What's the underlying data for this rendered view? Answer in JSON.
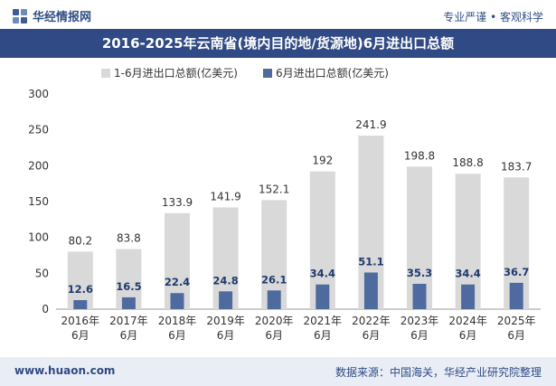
{
  "header": {
    "brand": "华经情报网",
    "tagline": "专业严谨 • 客观科学"
  },
  "colors": {
    "total": "#d9d9d9",
    "june": "#4f6a9f",
    "title_bg": "#2f4a84"
  },
  "chart_data": {
    "type": "bar",
    "title": "2016-2025年云南省(境内目的地/货源地)6月进出口总额",
    "categories": [
      "2016年\n6月",
      "2017年\n6月",
      "2018年\n6月",
      "2019年\n6月",
      "2020年\n6月",
      "2021年\n6月",
      "2022年\n6月",
      "2023年\n6月",
      "2024年\n6月",
      "2025年\n6月"
    ],
    "series": [
      {
        "name": "1-6月进出口总额(亿美元)",
        "values": [
          80.2,
          83.8,
          133.9,
          141.9,
          152.1,
          192,
          241.9,
          198.8,
          188.8,
          183.7
        ],
        "labels": [
          "80.2",
          "83.8",
          "133.9",
          "141.9",
          "152.1",
          "192",
          "241.9",
          "198.8",
          "188.8",
          "183.7"
        ]
      },
      {
        "name": "6月进出口总额(亿美元)",
        "values": [
          12.6,
          16.5,
          22.4,
          24.8,
          26.1,
          34.4,
          51.1,
          35.3,
          34.4,
          36.7
        ],
        "labels": [
          "12.6",
          "16.5",
          "22.4",
          "24.8",
          "26.1",
          "34.4",
          "51.1",
          "35.3",
          "34.4",
          "36.7"
        ]
      }
    ],
    "yticks": [
      "0",
      "50",
      "100",
      "150",
      "200",
      "250",
      "300"
    ],
    "ylim": [
      0,
      300
    ],
    "legend_position": "top-left",
    "grid": false
  },
  "footer": {
    "website": "www.huaon.com",
    "source": "数据来源：中国海关，华经产业研究院整理"
  }
}
